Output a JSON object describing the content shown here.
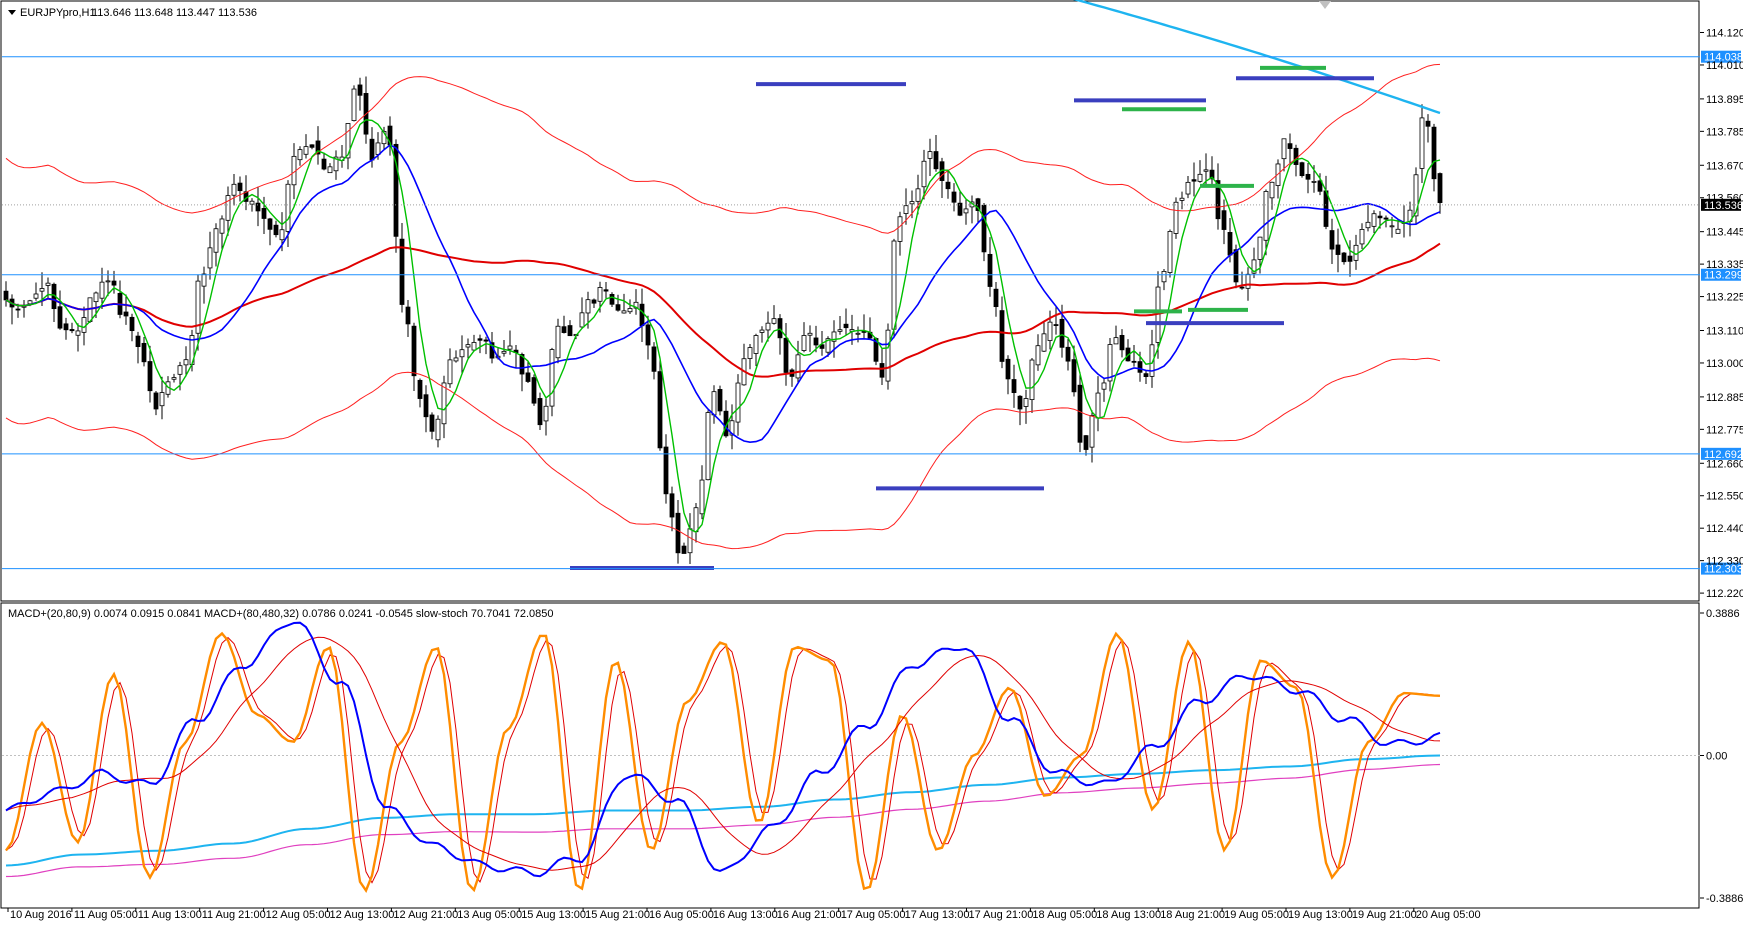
{
  "chart_data": [
    {
      "type": "candlestick",
      "header": {
        "symbol": "EURJPYpro,H1",
        "ohlc": "113.646 113.648 113.447 113.536"
      },
      "ylim": [
        112.2,
        114.22
      ],
      "y_ticks": [
        "114.120",
        "114.010",
        "113.895",
        "113.785",
        "113.670",
        "113.560",
        "113.445",
        "113.335",
        "113.225",
        "113.110",
        "113.000",
        "112.885",
        "112.775",
        "112.660",
        "112.550",
        "112.440",
        "112.330",
        "112.220"
      ],
      "horizontal_lines": [
        {
          "price": 114.038,
          "label": "114.038",
          "color": "#1e90ff"
        },
        {
          "price": 113.299,
          "label": "113.299",
          "color": "#1e90ff"
        },
        {
          "price": 112.692,
          "label": "112.692",
          "color": "#1e90ff"
        },
        {
          "price": 112.303,
          "label": "112.303",
          "color": "#1e90ff"
        }
      ],
      "current_price": {
        "price": 113.536,
        "label": "113.536"
      },
      "bars_count": 240,
      "key_prices": [
        113.23,
        113.18,
        113.22,
        113.26,
        113.12,
        113.1,
        113.22,
        113.29,
        113.15,
        113.05,
        112.85,
        112.95,
        113.0,
        113.3,
        113.45,
        113.6,
        113.55,
        113.5,
        113.42,
        113.7,
        113.75,
        113.65,
        113.7,
        113.95,
        113.7,
        113.8,
        113.2,
        112.9,
        112.75,
        113.0,
        113.05,
        113.08,
        113.02,
        113.05,
        112.95,
        112.8,
        113.12,
        113.1,
        113.2,
        113.25,
        113.18,
        113.2,
        113.05,
        112.55,
        112.35,
        112.5,
        112.9,
        112.75,
        113.0,
        113.1,
        113.15,
        112.95,
        113.1,
        113.05,
        113.12,
        113.1,
        113.1,
        112.95,
        113.5,
        113.55,
        113.72,
        113.6,
        113.5,
        113.55,
        113.25,
        112.95,
        112.85,
        113.05,
        113.15,
        113.0,
        112.7,
        112.9,
        113.1,
        113.0,
        112.95,
        113.3,
        113.55,
        113.62,
        113.65,
        113.45,
        113.25,
        113.35,
        113.6,
        113.75,
        113.65,
        113.6,
        113.4,
        113.35,
        113.45,
        113.5,
        113.45,
        113.5,
        113.85,
        113.536
      ],
      "resistance_levels": [
        {
          "price": 113.945,
          "color": "#3a3fbf"
        },
        {
          "price": 113.89,
          "color": "#3a3fbf"
        },
        {
          "price": 113.86,
          "color": "#2db34a"
        },
        {
          "price": 113.6,
          "color": "#2db34a"
        },
        {
          "price": 114.0,
          "color": "#2db34a"
        },
        {
          "price": 113.965,
          "color": "#3a3fbf"
        }
      ],
      "support_levels": [
        {
          "price": 112.575,
          "color": "#3a3fbf"
        },
        {
          "price": 112.305,
          "color": "#3a3fbf"
        },
        {
          "price": 113.175,
          "color": "#2db34a"
        },
        {
          "price": 113.18,
          "color": "#2db34a"
        },
        {
          "price": 113.135,
          "color": "#3a3fbf"
        }
      ],
      "series": [
        {
          "name": "",
          "color": "#00c000"
        },
        {
          "name": "",
          "color": "#0000ff"
        },
        {
          "name": "",
          "color": "#e00000"
        },
        {
          "name": "",
          "color": "#ff2020"
        },
        {
          "name": "",
          "color": "#1eb4f0"
        }
      ]
    },
    {
      "type": "line",
      "header": "MACD+(20,80,9) 0.0074 0.0915 0.0841   MACD+(80,480,32) 0.0786 0.0241 -0.0545   slow-stoch 70.7041 72.0850",
      "ylim": [
        -0.3886,
        0.3886
      ],
      "y_ticks": [
        "0.3886",
        "0.00",
        "-0.3886"
      ],
      "stoch_pivots": [
        0.15,
        0.62,
        0.18,
        0.8,
        0.05,
        0.55,
        0.95,
        0.65,
        0.55,
        0.9,
        0.0,
        0.55,
        0.9,
        0.0,
        0.6,
        0.95,
        0.0,
        0.85,
        0.15,
        0.7,
        0.92,
        0.25,
        0.9,
        0.85,
        0.0,
        0.65,
        0.15,
        0.5,
        0.75,
        0.35,
        0.5,
        0.95,
        0.3,
        0.92,
        0.15,
        0.85,
        0.75,
        0.05,
        0.55,
        0.73,
        0.72
      ],
      "macd_fast_pivots": [
        -0.15,
        -0.1,
        -0.05,
        -0.08,
        0.1,
        0.25,
        0.37,
        0.2,
        -0.15,
        -0.25,
        -0.3,
        -0.32,
        -0.28,
        -0.05,
        -0.12,
        -0.32,
        -0.2,
        -0.05,
        0.08,
        0.25,
        0.3,
        0.1,
        -0.05,
        -0.08,
        0.02,
        0.15,
        0.22,
        0.18,
        0.1,
        0.03,
        0.05
      ],
      "macd_slow_pivots": [
        -0.3,
        -0.27,
        -0.26,
        -0.24,
        -0.2,
        -0.17,
        -0.16,
        -0.16,
        -0.15,
        -0.15,
        -0.14,
        -0.12,
        -0.1,
        -0.08,
        -0.06,
        -0.05,
        -0.04,
        -0.03,
        -0.01,
        0.0
      ],
      "series": [
        {
          "name": "",
          "color": "#ff8c00"
        },
        {
          "name": "",
          "color": "#0000ff"
        },
        {
          "name": "",
          "color": "#e00000"
        },
        {
          "name": "",
          "color": "#1eb4f0"
        },
        {
          "name": "",
          "color": "#e040c0"
        }
      ]
    }
  ],
  "x_axis_labels": [
    "10 Aug 2016",
    "11 Aug 05:00",
    "11 Aug 13:00",
    "11 Aug 21:00",
    "12 Aug 05:00",
    "12 Aug 13:00",
    "12 Aug 21:00",
    "13 Aug 05:00",
    "15 Aug 13:00",
    "15 Aug 21:00",
    "16 Aug 05:00",
    "16 Aug 13:00",
    "16 Aug 21:00",
    "17 Aug 05:00",
    "17 Aug 13:00",
    "17 Aug 21:00",
    "18 Aug 05:00",
    "18 Aug 13:00",
    "18 Aug 21:00",
    "19 Aug 05:00",
    "19 Aug 13:00",
    "19 Aug 21:00",
    "20 Aug 05:00"
  ]
}
